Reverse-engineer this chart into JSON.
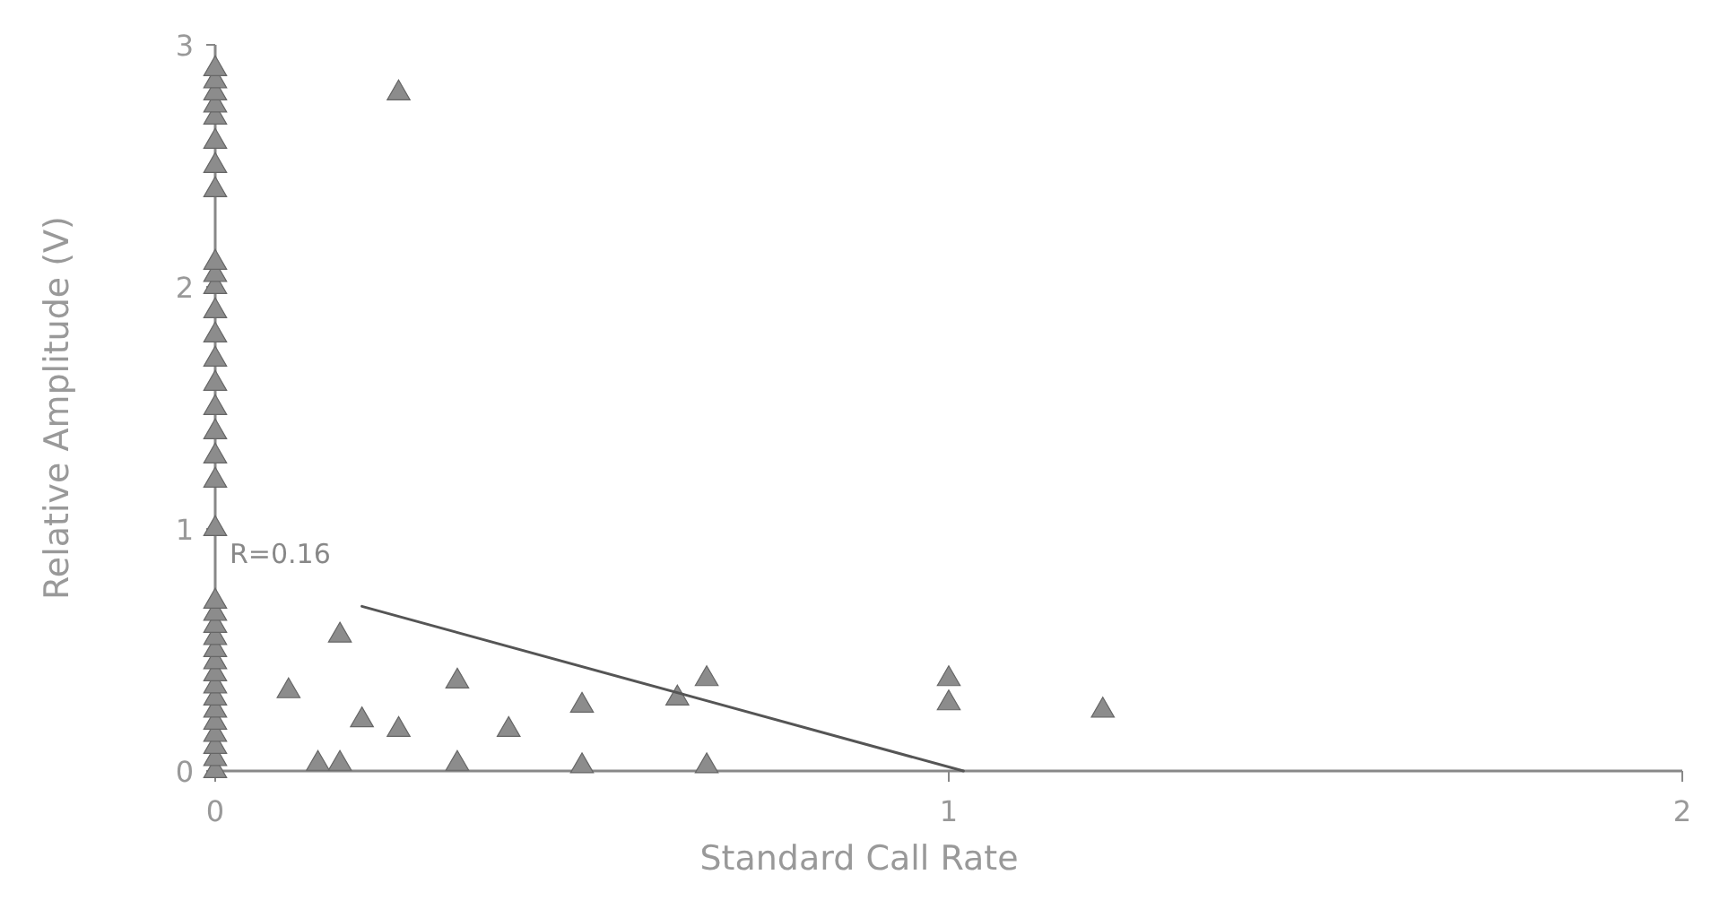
{
  "chart_data": {
    "type": "scatter",
    "xlabel": "Standard Call Rate",
    "ylabel": "Relative Amplitude (V)",
    "xlim": [
      0,
      2
    ],
    "ylim": [
      0,
      3
    ],
    "xticks": [
      0,
      1,
      2
    ],
    "yticks": [
      0,
      1,
      2,
      3
    ],
    "grid": false,
    "marker": "triangle",
    "annotations": [
      "R=0.16"
    ],
    "series": [
      {
        "color": "#8c8c8c",
        "x": [
          0,
          0,
          0,
          0,
          0,
          0,
          0,
          0,
          0,
          0,
          0,
          0,
          0,
          0,
          0,
          0,
          0,
          0,
          0,
          0,
          0,
          0,
          0,
          0,
          0,
          0,
          0,
          0,
          0,
          0,
          0,
          0,
          0,
          0,
          0,
          0.25,
          0.1,
          0.17,
          0.2,
          0.25,
          0.33,
          0.4,
          0.5,
          0.63,
          0.67,
          1.0,
          1.0,
          1.21,
          0.14,
          0.17,
          0.33,
          0.5,
          0.67
        ],
        "values": [
          0,
          0.05,
          0.1,
          0.15,
          0.2,
          0.25,
          0.3,
          0.35,
          0.4,
          0.45,
          0.5,
          0.55,
          0.6,
          0.65,
          0.7,
          1.0,
          1.2,
          1.3,
          1.4,
          1.5,
          1.6,
          1.7,
          1.8,
          1.9,
          2.0,
          2.05,
          2.1,
          2.4,
          2.5,
          2.6,
          2.7,
          2.75,
          2.8,
          2.85,
          2.9,
          2.8,
          0.33,
          0.56,
          0.21,
          0.17,
          0.37,
          0.17,
          0.27,
          0.3,
          0.38,
          0.38,
          0.28,
          0.25,
          0.03,
          0.03,
          0.03,
          0.02,
          0.02
        ]
      },
      {
        "type": "line",
        "marker": "none",
        "color": "#555555",
        "line_style": "solid",
        "x": [
          0.2,
          1.02
        ],
        "values": [
          0.68,
          0
        ]
      }
    ]
  }
}
